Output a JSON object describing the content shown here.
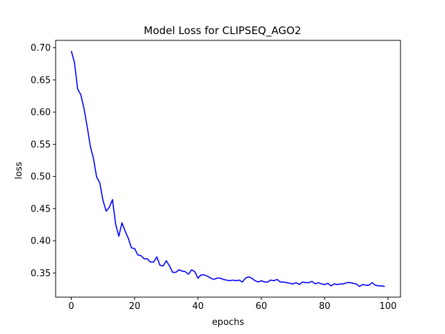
{
  "chart_data": {
    "type": "line",
    "title": "Model Loss for CLIPSEQ_AGO2",
    "xlabel": "epochs",
    "ylabel": "loss",
    "xlim": [
      -4.95,
      103.95
    ],
    "ylim": [
      0.3125,
      0.7115
    ],
    "xticks": [
      0,
      20,
      40,
      60,
      80,
      100
    ],
    "yticks": [
      0.35,
      0.4,
      0.45,
      0.5,
      0.55,
      0.6,
      0.65,
      0.7
    ],
    "xtick_labels": [
      "0",
      "20",
      "40",
      "60",
      "80",
      "100"
    ],
    "ytick_labels": [
      "0.35",
      "0.40",
      "0.45",
      "0.50",
      "0.55",
      "0.60",
      "0.65",
      "0.70"
    ],
    "grid": false,
    "series": [
      {
        "color": "#0000ff",
        "x": [
          0,
          1,
          2,
          3,
          4,
          5,
          6,
          7,
          8,
          9,
          10,
          11,
          12,
          13,
          14,
          15,
          16,
          17,
          18,
          19,
          20,
          21,
          22,
          23,
          24,
          25,
          26,
          27,
          28,
          29,
          30,
          31,
          32,
          33,
          34,
          35,
          36,
          37,
          38,
          39,
          40,
          41,
          42,
          43,
          44,
          45,
          46,
          47,
          48,
          49,
          50,
          51,
          52,
          53,
          54,
          55,
          56,
          57,
          58,
          59,
          60,
          61,
          62,
          63,
          64,
          65,
          66,
          67,
          68,
          69,
          70,
          71,
          72,
          73,
          74,
          75,
          76,
          77,
          78,
          79,
          80,
          81,
          82,
          83,
          84,
          85,
          86,
          87,
          88,
          89,
          90,
          91,
          92,
          93,
          94,
          95,
          96,
          97,
          98,
          99
        ],
        "y": [
          0.695,
          0.677,
          0.636,
          0.627,
          0.606,
          0.578,
          0.547,
          0.528,
          0.499,
          0.49,
          0.463,
          0.446,
          0.452,
          0.464,
          0.426,
          0.407,
          0.428,
          0.415,
          0.404,
          0.389,
          0.388,
          0.378,
          0.377,
          0.372,
          0.372,
          0.367,
          0.367,
          0.375,
          0.362,
          0.361,
          0.369,
          0.361,
          0.351,
          0.351,
          0.355,
          0.353,
          0.352,
          0.348,
          0.355,
          0.352,
          0.342,
          0.347,
          0.347,
          0.345,
          0.342,
          0.34,
          0.342,
          0.342,
          0.34,
          0.339,
          0.338,
          0.339,
          0.338,
          0.339,
          0.336,
          0.342,
          0.344,
          0.342,
          0.338,
          0.336,
          0.338,
          0.336,
          0.336,
          0.339,
          0.338,
          0.34,
          0.336,
          0.336,
          0.335,
          0.334,
          0.333,
          0.335,
          0.332,
          0.336,
          0.335,
          0.335,
          0.337,
          0.333,
          0.335,
          0.333,
          0.332,
          0.334,
          0.33,
          0.333,
          0.332,
          0.333,
          0.333,
          0.335,
          0.335,
          0.334,
          0.333,
          0.329,
          0.332,
          0.331,
          0.331,
          0.335,
          0.331,
          0.33,
          0.33,
          0.329
        ]
      }
    ]
  }
}
